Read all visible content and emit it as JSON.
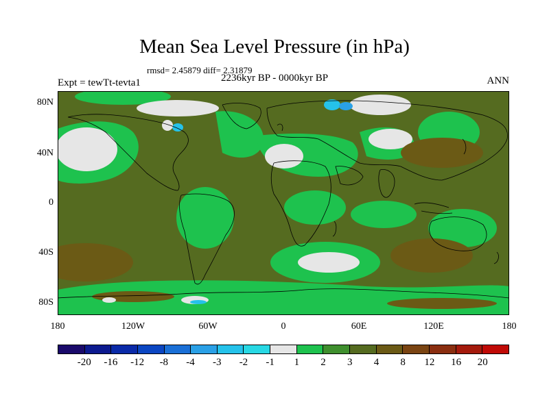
{
  "title": "Mean Sea Level Pressure (in hPa)",
  "stats_line": "rmsd= 2.45879 diff= 2.31879",
  "period": "2236kyr BP - 0000kyr BP",
  "experiment": "Expt = tewTt-tevta1",
  "season": "ANN",
  "lat_labels": [
    "80N",
    "40N",
    "0",
    "40S",
    "80S"
  ],
  "lon_labels": [
    "180",
    "120W",
    "60W",
    "0",
    "60E",
    "120E",
    "180"
  ],
  "colorbar": {
    "colors": [
      "#1a0a6b",
      "#0c1a8f",
      "#0a2aa8",
      "#0b46c2",
      "#1a6fd6",
      "#2aa0e6",
      "#25c2ea",
      "#28d8e4",
      "#e6e6e6",
      "#1ec24e",
      "#3f8f2e",
      "#556b20",
      "#6b5a15",
      "#7a4412",
      "#8a2e10",
      "#a41a0c",
      "#c00a06"
    ],
    "labels": [
      "-20",
      "-16",
      "-12",
      "-8",
      "-4",
      "-3",
      "-2",
      "-1",
      "1",
      "2",
      "3",
      "4",
      "8",
      "12",
      "16",
      "20"
    ]
  },
  "field_colors": {
    "base": "#556b20",
    "green": "#1ec24e",
    "dark_green": "#3f8f2e",
    "brown": "#6b5a15",
    "white": "#e6e6e6",
    "cyan": "#25c2ea",
    "light_blue": "#2aa0e6"
  }
}
